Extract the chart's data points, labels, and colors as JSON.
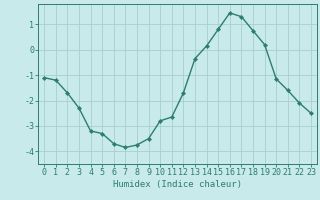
{
  "x": [
    0,
    1,
    2,
    3,
    4,
    5,
    6,
    7,
    8,
    9,
    10,
    11,
    12,
    13,
    14,
    15,
    16,
    17,
    18,
    19,
    20,
    21,
    22,
    23
  ],
  "y": [
    -1.1,
    -1.2,
    -1.7,
    -2.3,
    -3.2,
    -3.3,
    -3.7,
    -3.85,
    -3.75,
    -3.5,
    -2.8,
    -2.65,
    -1.7,
    -0.35,
    0.15,
    0.8,
    1.45,
    1.3,
    0.75,
    0.2,
    -1.15,
    -1.6,
    -2.1,
    -2.5
  ],
  "line_color": "#2d7d6e",
  "marker": "D",
  "marker_size": 2.2,
  "bg_color": "#c8eaea",
  "grid_color": "#a8cece",
  "xlabel": "Humidex (Indice chaleur)",
  "ylim": [
    -4.5,
    1.8
  ],
  "xlim": [
    -0.5,
    23.5
  ],
  "yticks": [
    -4,
    -3,
    -2,
    -1,
    0,
    1
  ],
  "xticks": [
    0,
    1,
    2,
    3,
    4,
    5,
    6,
    7,
    8,
    9,
    10,
    11,
    12,
    13,
    14,
    15,
    16,
    17,
    18,
    19,
    20,
    21,
    22,
    23
  ],
  "tick_color": "#2d7d6e",
  "label_fontsize": 6.5,
  "tick_fontsize": 6.0,
  "line_width": 1.0,
  "spine_color": "#2d7d6e"
}
